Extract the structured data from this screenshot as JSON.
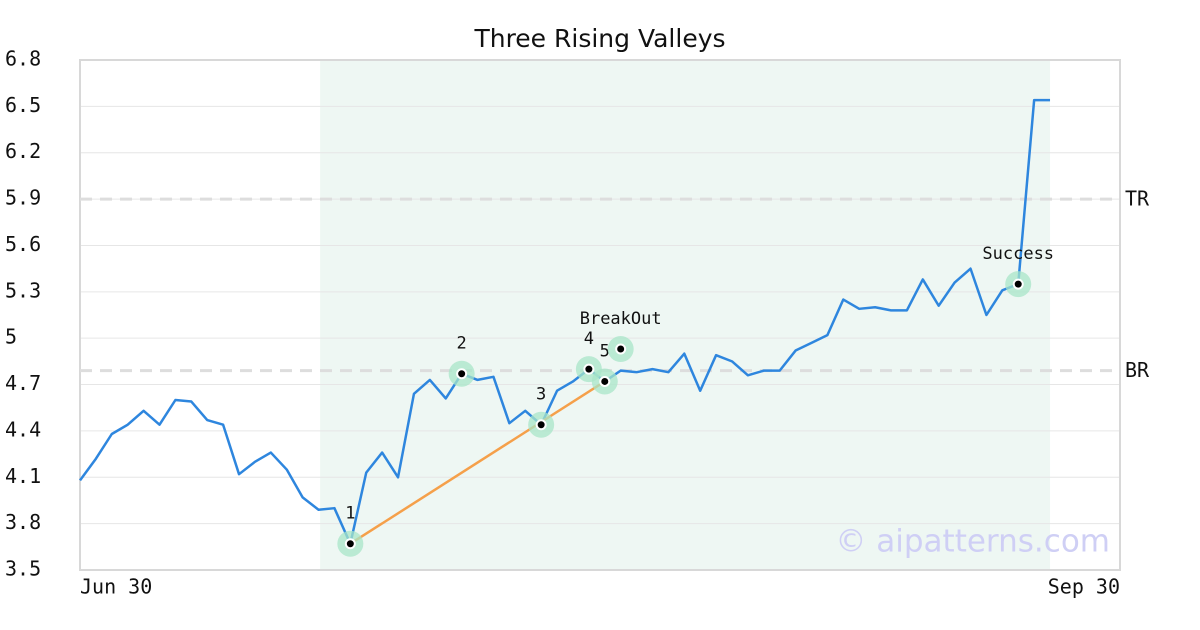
{
  "chart_data": {
    "type": "line",
    "title": "Three Rising Valleys",
    "watermark": "© aipatterns.com",
    "x": [
      0,
      1,
      2,
      3,
      4,
      5,
      6,
      7,
      8,
      9,
      10,
      11,
      12,
      13,
      14,
      15,
      16,
      17,
      18,
      19,
      20,
      21,
      22,
      23,
      24,
      25,
      26,
      27,
      28,
      29,
      30,
      31,
      32,
      33,
      34,
      35,
      36,
      37,
      38,
      39,
      40,
      41,
      42,
      43,
      44,
      45,
      46,
      47,
      48,
      49,
      50,
      51,
      52,
      53,
      54,
      55,
      56,
      57,
      58,
      59,
      60,
      61
    ],
    "series": [
      {
        "color": "#2e86de",
        "values": [
          4.08,
          4.22,
          4.38,
          4.44,
          4.53,
          4.44,
          4.6,
          4.59,
          4.47,
          4.44,
          4.12,
          4.2,
          4.26,
          4.15,
          3.97,
          3.89,
          3.9,
          3.67,
          4.13,
          4.26,
          4.1,
          4.64,
          4.73,
          4.61,
          4.77,
          4.73,
          4.75,
          4.45,
          4.53,
          4.44,
          4.66,
          4.72,
          4.8,
          4.72,
          4.79,
          4.78,
          4.8,
          4.78,
          4.9,
          4.66,
          4.89,
          4.85,
          4.76,
          4.79,
          4.79,
          4.92,
          4.97,
          5.02,
          5.25,
          5.19,
          5.2,
          5.18,
          5.18,
          5.38,
          5.21,
          5.36,
          5.45,
          5.15,
          5.31,
          5.35,
          6.54,
          6.54
        ]
      }
    ],
    "xlim": [
      0,
      65.4
    ],
    "xticks": [
      {
        "value": 0,
        "label": "Jun 30"
      },
      {
        "value": 65.4,
        "label": "Sep 30"
      }
    ],
    "ylim": [
      3.5,
      6.8
    ],
    "yticks": [
      3.5,
      3.8,
      4.1,
      4.4,
      4.7,
      5.0,
      5.3,
      5.6,
      5.9,
      6.2,
      6.5,
      6.8
    ],
    "grid": true,
    "highlight_range": [
      15.1,
      61
    ],
    "highlight_color": "#eef7f3",
    "levels": [
      {
        "label": "TR",
        "value": 5.9
      },
      {
        "label": "BR",
        "value": 4.79
      }
    ],
    "pattern_line": {
      "color": "#f5a04a",
      "x": [
        17,
        33
      ],
      "y": [
        3.67,
        4.72
      ]
    },
    "markers": [
      {
        "label": "1",
        "x": 17,
        "y": 3.67
      },
      {
        "label": "2",
        "x": 24,
        "y": 4.77
      },
      {
        "label": "3",
        "x": 29,
        "y": 4.44
      },
      {
        "label": "4",
        "x": 32,
        "y": 4.8
      },
      {
        "label": "5",
        "x": 33,
        "y": 4.72
      },
      {
        "label": "BreakOut",
        "x": 34,
        "y": 4.93
      },
      {
        "label": "Success",
        "x": 59,
        "y": 5.35
      }
    ]
  }
}
